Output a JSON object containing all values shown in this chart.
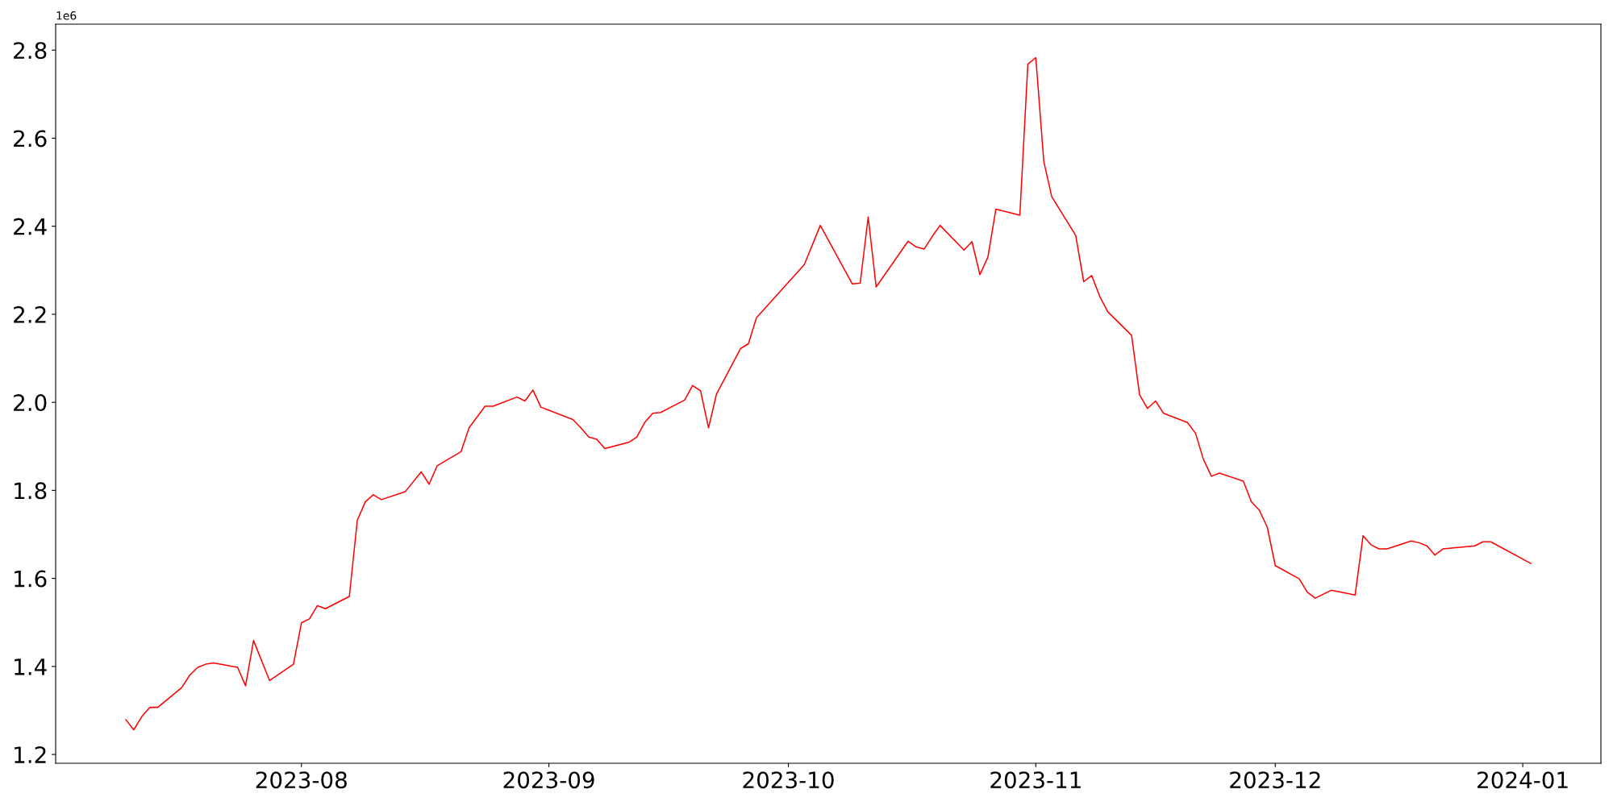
{
  "chart_data": {
    "type": "line",
    "x": [
      "2023-07-10",
      "2023-07-11",
      "2023-07-12",
      "2023-07-13",
      "2023-07-14",
      "2023-07-17",
      "2023-07-18",
      "2023-07-19",
      "2023-07-20",
      "2023-07-21",
      "2023-07-24",
      "2023-07-25",
      "2023-07-26",
      "2023-07-28",
      "2023-07-31",
      "2023-08-01",
      "2023-08-02",
      "2023-08-03",
      "2023-08-04",
      "2023-08-07",
      "2023-08-08",
      "2023-08-09",
      "2023-08-10",
      "2023-08-11",
      "2023-08-14",
      "2023-08-16",
      "2023-08-17",
      "2023-08-18",
      "2023-08-21",
      "2023-08-22",
      "2023-08-24",
      "2023-08-25",
      "2023-08-28",
      "2023-08-29",
      "2023-08-30",
      "2023-08-31",
      "2023-09-01",
      "2023-09-04",
      "2023-09-05",
      "2023-09-06",
      "2023-09-07",
      "2023-09-08",
      "2023-09-11",
      "2023-09-12",
      "2023-09-13",
      "2023-09-14",
      "2023-09-15",
      "2023-09-18",
      "2023-09-19",
      "2023-09-20",
      "2023-09-21",
      "2023-09-22",
      "2023-09-25",
      "2023-09-26",
      "2023-09-27",
      "2023-10-03",
      "2023-10-05",
      "2023-10-09",
      "2023-10-10",
      "2023-10-11",
      "2023-10-12",
      "2023-10-16",
      "2023-10-17",
      "2023-10-18",
      "2023-10-19",
      "2023-10-20",
      "2023-10-23",
      "2023-10-24",
      "2023-10-25",
      "2023-10-26",
      "2023-10-27",
      "2023-10-30",
      "2023-10-31",
      "2023-11-01",
      "2023-11-02",
      "2023-11-03",
      "2023-11-06",
      "2023-11-07",
      "2023-11-08",
      "2023-11-09",
      "2023-11-10",
      "2023-11-13",
      "2023-11-14",
      "2023-11-15",
      "2023-11-16",
      "2023-11-17",
      "2023-11-20",
      "2023-11-21",
      "2023-11-22",
      "2023-11-23",
      "2023-11-24",
      "2023-11-27",
      "2023-11-28",
      "2023-11-29",
      "2023-11-30",
      "2023-12-01",
      "2023-12-04",
      "2023-12-05",
      "2023-12-06",
      "2023-12-08",
      "2023-12-11",
      "2023-12-12",
      "2023-12-13",
      "2023-12-14",
      "2023-12-15",
      "2023-12-18",
      "2023-12-19",
      "2023-12-20",
      "2023-12-21",
      "2023-12-22",
      "2023-12-26",
      "2023-12-27",
      "2023-12-28",
      "2024-01-02"
    ],
    "series": [
      {
        "color": "#ff0000",
        "values": [
          1.279,
          1.256,
          1.286,
          1.307,
          1.307,
          1.352,
          1.38,
          1.398,
          1.405,
          1.408,
          1.398,
          1.356,
          1.459,
          1.368,
          1.405,
          1.499,
          1.508,
          1.538,
          1.531,
          1.559,
          1.732,
          1.774,
          1.79,
          1.779,
          1.797,
          1.842,
          1.814,
          1.856,
          1.888,
          1.942,
          1.991,
          1.991,
          2.012,
          2.003,
          2.028,
          1.989,
          1.982,
          1.961,
          1.942,
          1.921,
          1.916,
          1.895,
          1.909,
          1.921,
          1.954,
          1.975,
          1.977,
          2.005,
          2.038,
          2.026,
          1.942,
          2.019,
          2.122,
          2.133,
          2.192,
          2.313,
          2.402,
          2.269,
          2.271,
          2.421,
          2.262,
          2.366,
          2.353,
          2.348,
          2.376,
          2.402,
          2.346,
          2.365,
          2.29,
          2.33,
          2.439,
          2.425,
          2.768,
          2.783,
          2.547,
          2.467,
          2.379,
          2.274,
          2.288,
          2.241,
          2.206,
          2.152,
          2.017,
          1.986,
          2.003,
          1.975,
          1.954,
          1.93,
          1.87,
          1.832,
          1.839,
          1.821,
          1.774,
          1.755,
          1.716,
          1.629,
          1.599,
          1.569,
          1.555,
          1.573,
          1.562,
          1.697,
          1.676,
          1.667,
          1.667,
          1.685,
          1.681,
          1.674,
          1.653,
          1.667,
          1.674,
          1.683,
          1.683,
          1.634
        ]
      }
    ],
    "xlim": [
      "2023-07-01T05:00",
      "2024-01-10T19:00"
    ],
    "xticks": [
      {
        "value": "2023-08-01",
        "label": "2023-08"
      },
      {
        "value": "2023-09-01",
        "label": "2023-09"
      },
      {
        "value": "2023-10-01",
        "label": "2023-10"
      },
      {
        "value": "2023-11-01",
        "label": "2023-11"
      },
      {
        "value": "2023-12-01",
        "label": "2023-12"
      },
      {
        "value": "2024-01-01",
        "label": "2024-01"
      }
    ],
    "ylim": [
      1.18,
      2.859
    ],
    "yticks": [
      1.2,
      1.4,
      1.6,
      1.8,
      {
        "value": 2.0,
        "label": "2.0"
      },
      2.2,
      2.4,
      2.6,
      2.8
    ],
    "annotations": [
      "1e6"
    ],
    "grid": false,
    "legend": false,
    "marker": "none",
    "line_style": "solid"
  }
}
